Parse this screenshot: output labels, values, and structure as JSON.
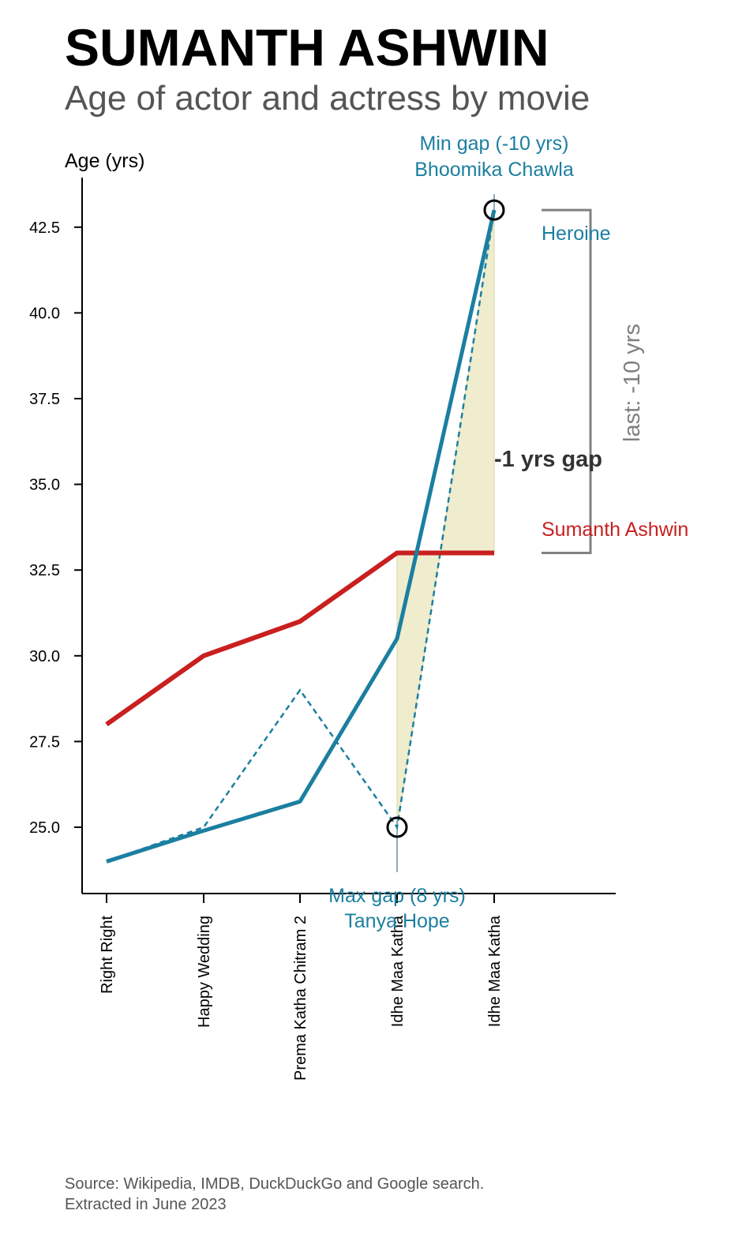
{
  "title": "SUMANTH ASHWIN",
  "subtitle": "Age of actor and actress by movie",
  "source": {
    "line1": "Source: Wikipedia, IMDB, DuckDuckGo and Google search.",
    "line2": "Extracted in June 2023"
  },
  "colors": {
    "actor": "#c8201f",
    "heroine": "#1b7fa0",
    "fill": "#e8e6b8",
    "grey": "#808080",
    "gap_text": "#333333"
  },
  "chart_data": {
    "type": "line",
    "ylabel": "Age (yrs)",
    "xlabel": "",
    "ylim": [
      23.0,
      43.9
    ],
    "yticks": [
      25.0,
      27.5,
      30.0,
      32.5,
      35.0,
      37.5,
      40.0,
      42.5
    ],
    "ytick_labels": [
      "25.0",
      "27.5",
      "30.0",
      "32.5",
      "35.0",
      "37.5",
      "40.0",
      "42.5"
    ],
    "categories": [
      "Right Right",
      "Happy Wedding",
      "Prema Katha Chitram 2",
      "Idhe Maa Katha",
      "Idhe Maa Katha"
    ],
    "series": [
      {
        "name": "Sumanth Ashwin",
        "style": "solid",
        "values": [
          28,
          30,
          31,
          33,
          33
        ]
      },
      {
        "name": "Heroine",
        "style": "solid",
        "values": [
          24,
          24.9,
          25.75,
          30.5,
          43
        ]
      },
      {
        "name": "",
        "style": "dashed",
        "values": [
          24,
          25,
          29,
          25,
          43
        ]
      }
    ],
    "fill_between": {
      "from_index": 3,
      "to_index": 4
    },
    "annotations": {
      "max_gap": {
        "line1": "Max gap (8 yrs)",
        "line2": "Tanya Hope",
        "index": 3,
        "value": 25
      },
      "min_gap": {
        "line1": "Min gap (-10 yrs)",
        "line2": "Bhoomika Chawla",
        "index": 4,
        "value": 43
      },
      "gap_label": "-1 yrs gap",
      "last_label": "last: -10 yrs",
      "heroine_label": "Heroine",
      "actor_label": "Sumanth Ashwin"
    },
    "grid": false,
    "legend": "none"
  }
}
